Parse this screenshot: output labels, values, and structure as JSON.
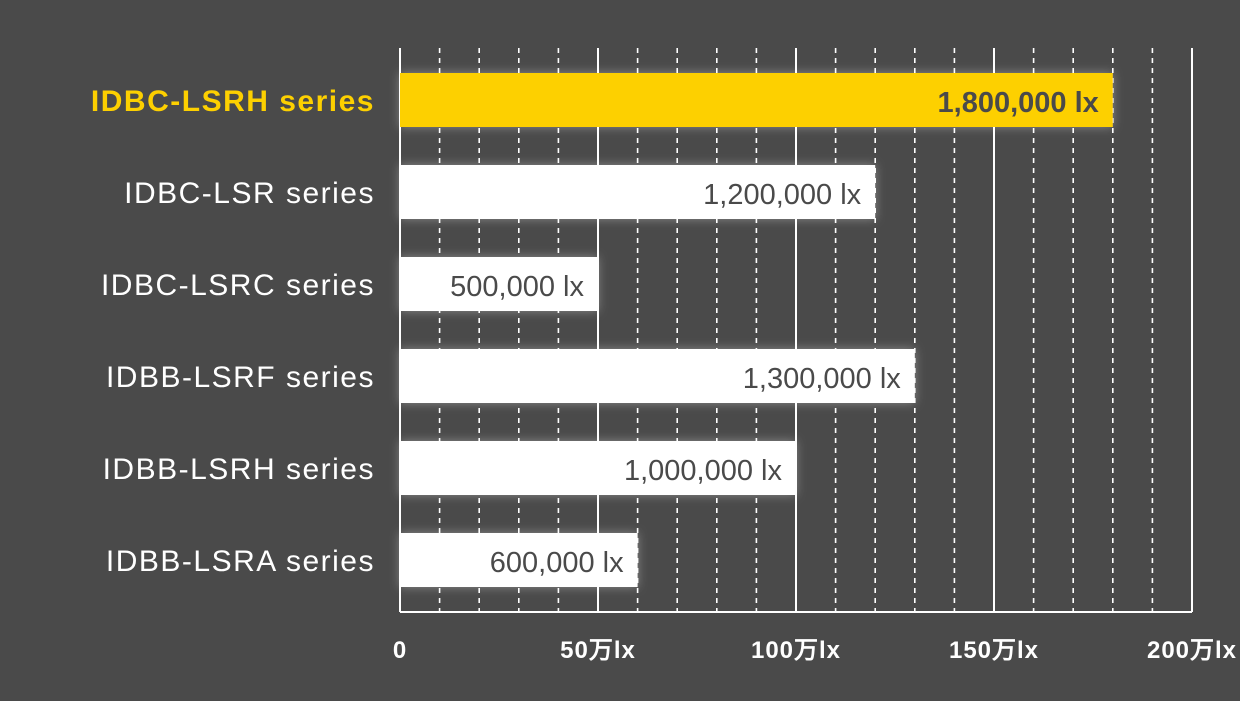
{
  "chart_data": {
    "type": "bar",
    "orientation": "horizontal",
    "categories": [
      "IDBC-LSRH series",
      "IDBC-LSR series",
      "IDBC-LSRC series",
      "IDBB-LSRF series",
      "IDBB-LSRH series",
      "IDBB-LSRA series"
    ],
    "values": [
      1800000,
      1200000,
      500000,
      1300000,
      1000000,
      600000
    ],
    "value_labels": [
      "1,800,000 lx",
      "1,200,000 lx",
      "500,000 lx",
      "1,300,000 lx",
      "1,000,000 lx",
      "600,000 lx"
    ],
    "highlight_index": 0,
    "xlim": [
      0,
      2000000
    ],
    "x_ticks": [
      0,
      500000,
      1000000,
      1500000,
      2000000
    ],
    "x_tick_labels": [
      "0",
      "50万lx",
      "100万lx",
      "150万lx",
      "200万lx"
    ],
    "minor_grid_step": 100000,
    "grid": true,
    "title": "",
    "xlabel": "",
    "ylabel": ""
  },
  "colors": {
    "background": "#4a4a4a",
    "bar": "#ffffff",
    "bar_highlight": "#fdd000",
    "value_text": "#4a4a4a",
    "category_text": "#ffffff",
    "category_text_highlight": "#fdd000",
    "grid": "#ffffff",
    "tick_text": "#ffffff"
  }
}
